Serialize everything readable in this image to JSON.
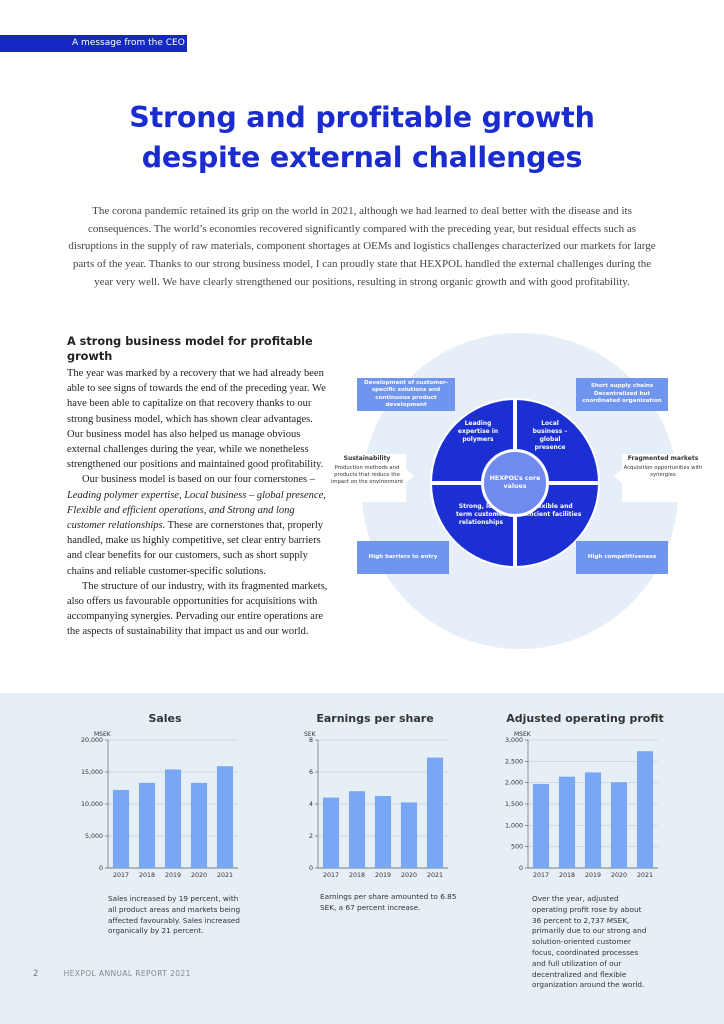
{
  "section_tag": "A message from the CEO",
  "title": {
    "line1": "Strong and profitable growth",
    "line2": "despite external challenges"
  },
  "intro": "The corona pandemic retained its grip on the world in 2021, although we had learned to deal better with the disease and its consequences. The world’s economies recovered significantly compared with the preceding year, but residual effects such as disruptions in the supply of raw materials, component shortages at OEMs and logistics challenges characterized our markets for large parts of the year. Thanks to our strong business model, I can proudly state that HEXPOL handled the external challenges during the year very well. We have clearly strengthened our positions, resulting in strong organic growth and with good profitability.",
  "body": {
    "heading": "A strong business model for profitable growth",
    "p1": "The year was marked by a recovery that we had already been able to see signs of towards the end of the preceding year. We have been able to capitalize on that recovery thanks to our strong business model, which has shown clear advantages. Our business model has also helped us manage obvious external challenges during the year, while we nonetheless strengthened our positions and maintained good profitability.",
    "p2_start": "Our business model is based on our four cornerstones – ",
    "p2_em": "Leading polymer expertise, Local business – global presence, Flexible and efficient operations, and Strong and long customer relationships.",
    "p2_end": " These are cornerstones that, properly handled, make us highly competitive, set clear entry barriers and clear benefits for our customers, such as short supply chains and reliable customer-specific solutions.",
    "p3": "The structure of our industry, with its fragmented markets, also offers us favourable opportunities for acquisitions with accompanying synergies. Pervading our entire operations are the aspects of sustainability that impact us and our world."
  },
  "model": {
    "core": "HEXPOL’s core values",
    "quadrants": {
      "top_left": "Leading expertise in polymers",
      "top_right": "Local business – global presence",
      "bottom_left": "Strong, long-term customer relationships",
      "bottom_right": "Flexible and efficient facilities"
    },
    "pills": {
      "top_left": "Development of customer-specific solutions and continuous product development",
      "top_right": "Short supply chains Decentralized but coordinated organization",
      "bottom_left": "High barriers to entry",
      "bottom_right": "High competitiveness"
    },
    "left_box": {
      "title": "Sustainability",
      "text": "Production methods and products that reduce the impact on the environment"
    },
    "right_box": {
      "title": "Fragmented markets",
      "text": "Acquisition opportunities with synergies"
    }
  },
  "chart_data": [
    {
      "type": "bar",
      "title": "Sales",
      "ylabel": "MSEK",
      "categories": [
        "2017",
        "2018",
        "2019",
        "2020",
        "2021"
      ],
      "values": [
        12200,
        13300,
        15400,
        13300,
        15900
      ],
      "ylim": [
        0,
        20000
      ],
      "yticks": [
        "0",
        "5,000",
        "10,000",
        "15,000",
        "20,000"
      ],
      "yticks_values": [
        0,
        5000,
        10000,
        15000,
        20000
      ],
      "color": "#78a8f5"
    },
    {
      "type": "bar",
      "title": "Earnings per share",
      "ylabel": "SEK",
      "categories": [
        "2017",
        "2018",
        "2019",
        "2020",
        "2021"
      ],
      "values": [
        4.4,
        4.8,
        4.5,
        4.1,
        6.9
      ],
      "ylim": [
        0,
        8
      ],
      "yticks": [
        "0",
        "2",
        "4",
        "6",
        "8"
      ],
      "yticks_values": [
        0,
        2,
        4,
        6,
        8
      ],
      "color": "#78a8f5"
    },
    {
      "type": "bar",
      "title": "Adjusted operating profit",
      "ylabel": "MSEK",
      "categories": [
        "2017",
        "2018",
        "2019",
        "2020",
        "2021"
      ],
      "values": [
        1970,
        2140,
        2240,
        2010,
        2737
      ],
      "ylim": [
        0,
        3000
      ],
      "yticks": [
        "0",
        "500",
        "1,000",
        "1,500",
        "2,000",
        "2,500",
        "3,000"
      ],
      "yticks_values": [
        0,
        500,
        1000,
        1500,
        2000,
        2500,
        3000
      ],
      "color": "#78a8f5"
    }
  ],
  "chart_notes": {
    "sales": "Sales increased by 19 percent, with all product areas and markets being affected favourably. Sales increased organically by 21 percent.",
    "eps": "Earnings per share amounted to 6.85 SEK, a 67 percent increase.",
    "profit": "Over the year, adjusted operating profit rose by about 36 percent to 2,737 MSEK, primarily due to our strong and solution-oriented customer focus, coordinated processes and full utilization of our decentralized and flexible organization around the world."
  },
  "footer": {
    "page_number": "2",
    "report": "HEXPOL ANNUAL REPORT 2021"
  }
}
